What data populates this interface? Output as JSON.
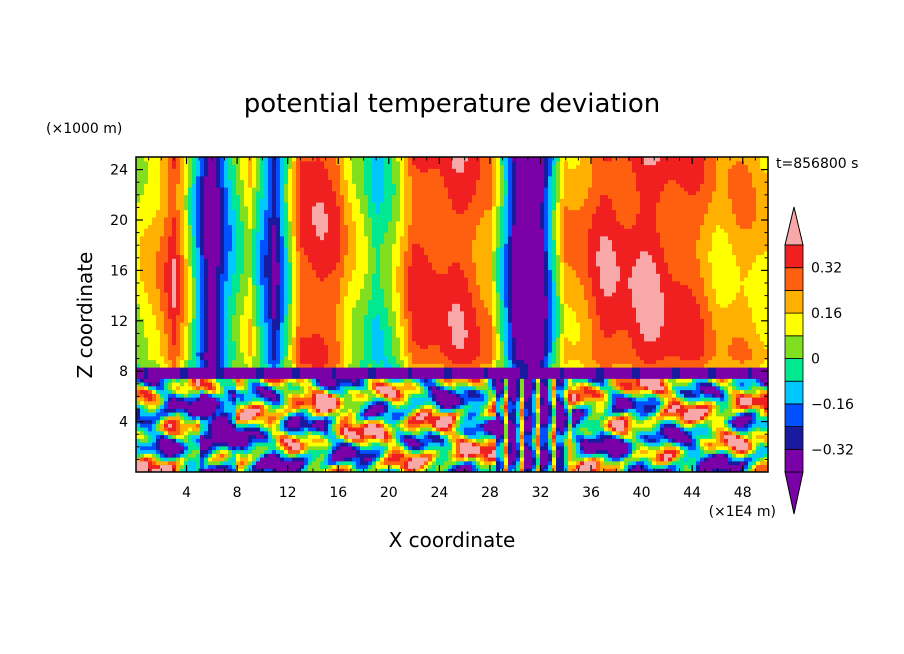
{
  "chart_data": {
    "type": "heatmap",
    "title": "potential temperature deviation",
    "xlabel": "X coordinate",
    "ylabel": "Z coordinate",
    "x_units": "(×1E4 m)",
    "y_units": "(×1000 m)",
    "time_label": "t=856800 s",
    "xlim": [
      0,
      50
    ],
    "ylim": [
      0,
      25
    ],
    "x_ticks": [
      4,
      8,
      12,
      16,
      20,
      24,
      28,
      32,
      36,
      40,
      44,
      48
    ],
    "y_ticks": [
      4,
      8,
      12,
      16,
      20,
      24
    ],
    "interface_height": 8,
    "colorbar": {
      "ticks": [
        "0.32",
        "0.16",
        "0",
        "−0.16",
        "−0.32"
      ],
      "tick_values": [
        0.32,
        0.16,
        0,
        -0.16,
        -0.32
      ],
      "levels": [
        -0.4,
        -0.32,
        -0.24,
        -0.16,
        -0.08,
        0,
        0.08,
        0.16,
        0.24,
        0.32,
        0.4
      ],
      "colors": [
        "#7a00a8",
        "#1a1aa0",
        "#0050ff",
        "#00c8ff",
        "#00e890",
        "#80e020",
        "#ffff00",
        "#ffb000",
        "#ff6010",
        "#f02020",
        "#f8a8a8",
        "#ffffff"
      ],
      "under_color": "#7a00a8",
      "over_color": "#f8a8a8"
    },
    "upper_layer_profile": {
      "x": [
        0,
        3,
        6,
        9,
        11,
        13,
        16,
        19,
        22,
        25,
        28,
        30,
        32,
        34,
        37,
        40,
        43,
        46,
        50
      ],
      "values": [
        0.05,
        0.35,
        -0.4,
        0.15,
        -0.38,
        0.35,
        0.3,
        -0.1,
        0.3,
        0.35,
        0.25,
        -0.4,
        -0.4,
        0.2,
        0.34,
        0.38,
        0.33,
        0.2,
        0.18
      ]
    }
  }
}
